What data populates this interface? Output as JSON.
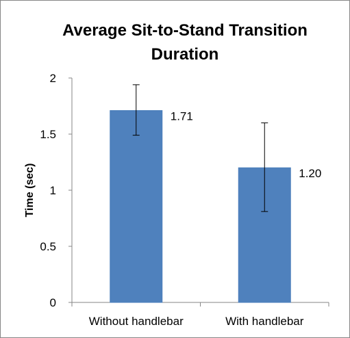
{
  "chart_data": {
    "type": "bar",
    "title": "Average Sit-to-Stand Transition Duration",
    "xlabel": "",
    "ylabel": "Time (sec)",
    "categories": [
      "Without handlebar",
      "With handlebar"
    ],
    "values": [
      1.71,
      1.2
    ],
    "data_labels": [
      "1.71",
      "1.20"
    ],
    "error_bars": [
      {
        "low": 1.49,
        "high": 1.94
      },
      {
        "low": 0.81,
        "high": 1.6
      }
    ],
    "ylim": [
      0,
      2
    ],
    "yticks": [
      0,
      0.5,
      1,
      1.5,
      2
    ],
    "ytick_labels": [
      "0",
      "0.5",
      "1",
      "1.5",
      "2"
    ],
    "grid": false,
    "legend": "none",
    "colors": {
      "bar": "#4F81BD",
      "bar_edge": "#4A7EBB",
      "axis": "#868686",
      "error_bar": "#000000"
    }
  }
}
